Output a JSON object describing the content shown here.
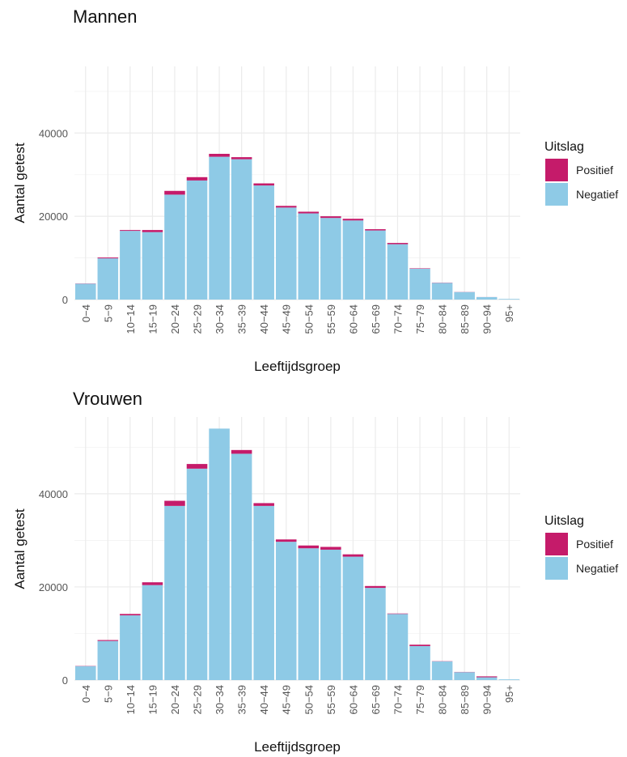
{
  "chart_data": [
    {
      "type": "bar",
      "stacked": true,
      "title": "Mannen",
      "xlabel": "Leeftijdsgroep",
      "ylabel": "Aantal getest",
      "ylim": [
        0,
        56000
      ],
      "yticks": [
        0,
        20000,
        40000
      ],
      "ytick_labels": [
        "0",
        "20000",
        "40000"
      ],
      "grid": true,
      "legend": {
        "title": "Uitslag",
        "position": "right"
      },
      "categories": [
        "0−4",
        "5−9",
        "10−14",
        "15−19",
        "20−24",
        "25−29",
        "30−34",
        "35−39",
        "40−44",
        "45−49",
        "50−54",
        "55−59",
        "60−64",
        "65−69",
        "70−74",
        "75−79",
        "80−84",
        "85−89",
        "90−94",
        "95+"
      ],
      "series": [
        {
          "name": "Negatief",
          "color": "#8ecae6",
          "values": [
            3800,
            9900,
            16500,
            16200,
            25200,
            28600,
            34300,
            33700,
            27400,
            22100,
            20700,
            19600,
            19000,
            16600,
            13300,
            7400,
            4000,
            1800,
            600,
            150
          ]
        },
        {
          "name": "Positief",
          "color": "#c51b6a",
          "values": [
            50,
            200,
            200,
            500,
            900,
            800,
            700,
            500,
            500,
            400,
            400,
            400,
            400,
            300,
            300,
            100,
            50,
            30,
            10,
            0
          ]
        }
      ]
    },
    {
      "type": "bar",
      "stacked": true,
      "title": "Vrouwen",
      "xlabel": "Leeftijdsgroep",
      "ylabel": "Aantal getest",
      "ylim": [
        0,
        56500
      ],
      "yticks": [
        0,
        20000,
        40000
      ],
      "ytick_labels": [
        "0",
        "20000",
        "40000"
      ],
      "grid": true,
      "legend": {
        "title": "Uitslag",
        "position": "right"
      },
      "categories": [
        "0−4",
        "5−9",
        "10−14",
        "15−19",
        "20−24",
        "25−29",
        "30−34",
        "35−39",
        "40−44",
        "45−49",
        "50−54",
        "55−59",
        "60−64",
        "65−69",
        "70−74",
        "75−79",
        "80−84",
        "85−89",
        "90−94",
        "95+"
      ],
      "series": [
        {
          "name": "Negatief",
          "color": "#8ecae6",
          "values": [
            3000,
            8400,
            13900,
            20400,
            37400,
            45400,
            54000,
            48600,
            37400,
            29700,
            28300,
            28000,
            26500,
            19800,
            14200,
            7300,
            4000,
            1700,
            600,
            150
          ]
        },
        {
          "name": "Positief",
          "color": "#c51b6a",
          "values": [
            50,
            200,
            300,
            600,
            1100,
            1000,
            0,
            800,
            600,
            500,
            600,
            600,
            500,
            400,
            100,
            300,
            50,
            50,
            200,
            0
          ]
        }
      ]
    }
  ]
}
